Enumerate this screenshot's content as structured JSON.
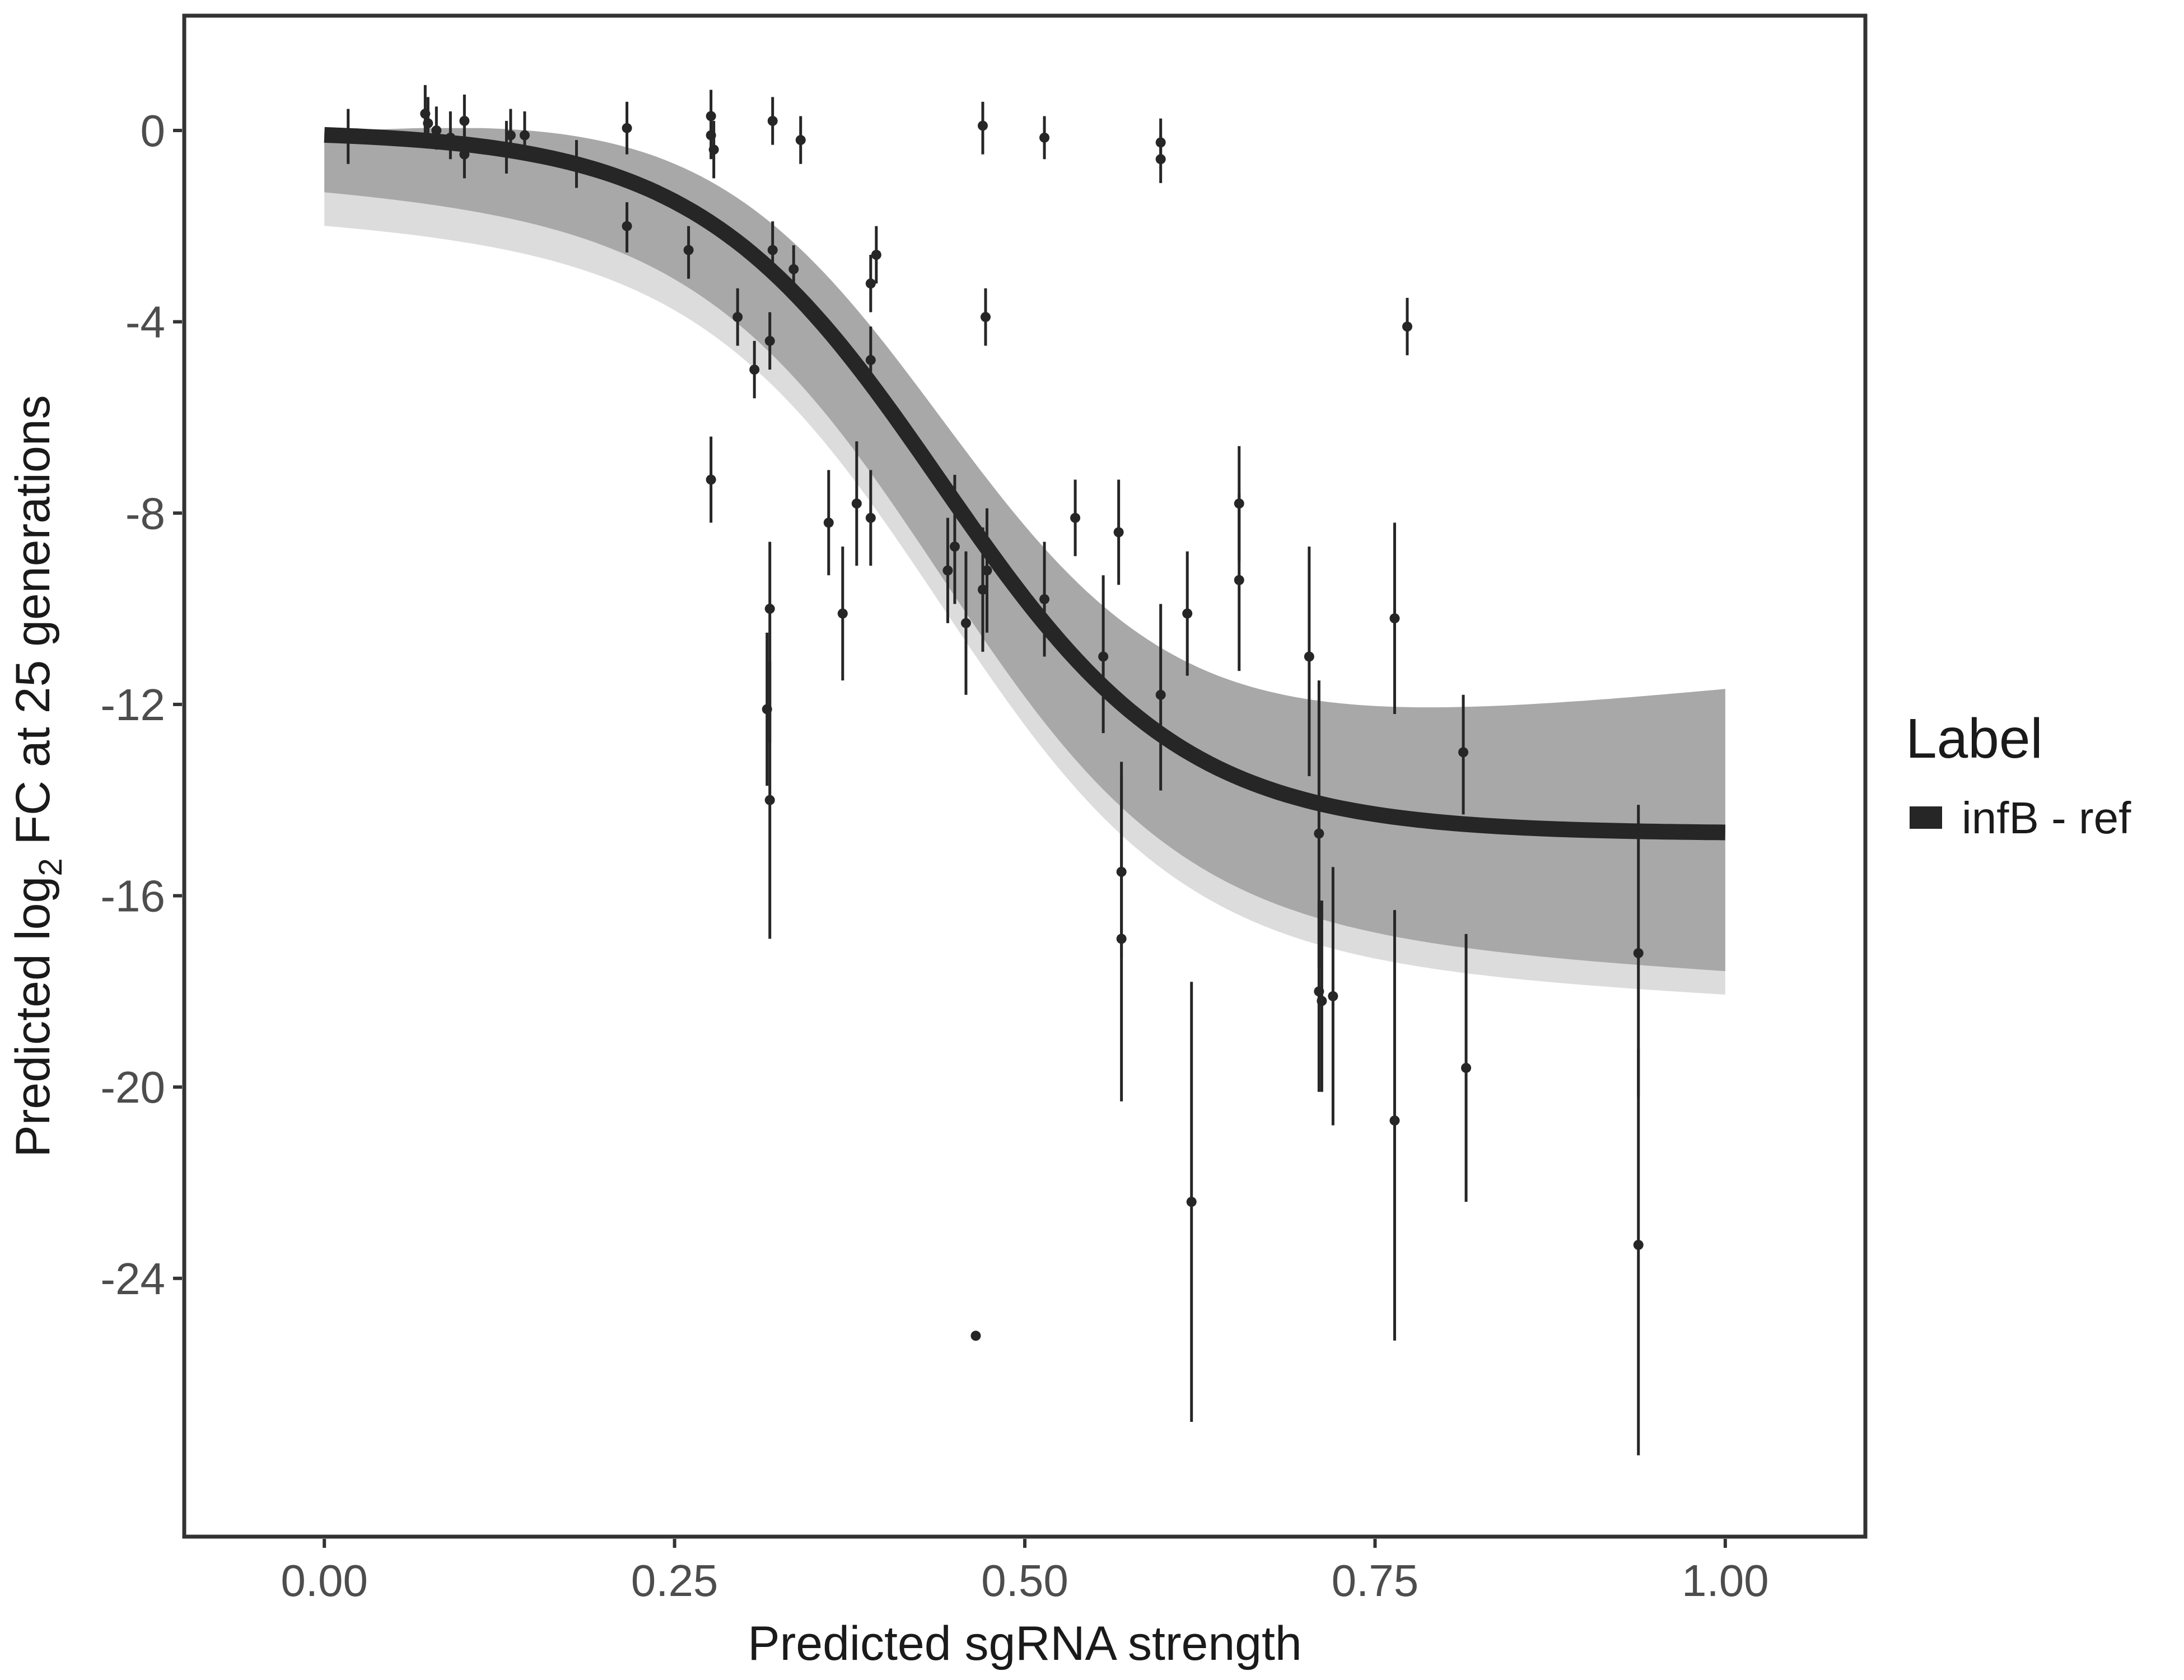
{
  "chart_data": {
    "type": "scatter",
    "xlabel": "Predicted sgRNA strength",
    "ylabel_parts": [
      "Predicted  log",
      "2",
      " FC at 25 generations"
    ],
    "xlim": [
      -0.1,
      1.1
    ],
    "ylim": [
      -29.4,
      2.4
    ],
    "x_ticks": [
      0,
      0.25,
      0.5,
      0.75,
      1
    ],
    "x_tick_labels": [
      "0.00",
      "0.25",
      "0.50",
      "0.75",
      "1.00"
    ],
    "y_ticks": [
      0,
      -4,
      -8,
      -12,
      -16,
      -20,
      -24
    ],
    "y_tick_labels": [
      "0",
      "-4",
      "-8",
      "-12",
      "-16",
      "-20",
      "-24"
    ],
    "grid": false,
    "legend": {
      "title": "Label",
      "placement": "right",
      "entries": [
        {
          "label": "infB - ref",
          "color": "#262626"
        }
      ]
    },
    "fit_curve": {
      "name": "infB - ref",
      "color": "#262626",
      "top": 0,
      "bottom": -14.7,
      "midpoint": 0.44,
      "slope": 11.5
    },
    "posterior_band": {
      "color": "#a8a8a8",
      "edge_color": "#dcdcdc",
      "lower_at_x0": -1.2,
      "upper_at_x0": 0.05,
      "lower_at_x1": -17.6,
      "upper_at_x1": -11.7
    },
    "points": [
      {
        "x": 0.017,
        "y": -0.1,
        "lo": -0.7,
        "hi": 0.45
      },
      {
        "x": 0.072,
        "y": 0.35,
        "lo": -0.25,
        "hi": 0.95
      },
      {
        "x": 0.074,
        "y": 0.15,
        "lo": -0.3,
        "hi": 0.7
      },
      {
        "x": 0.08,
        "y": 0.0,
        "lo": -0.4,
        "hi": 0.5
      },
      {
        "x": 0.09,
        "y": -0.15,
        "lo": -0.6,
        "hi": 0.4
      },
      {
        "x": 0.1,
        "y": 0.2,
        "lo": -0.4,
        "hi": 0.75
      },
      {
        "x": 0.1,
        "y": -0.5,
        "lo": -1.0,
        "hi": 0.0
      },
      {
        "x": 0.13,
        "y": -0.4,
        "lo": -0.9,
        "hi": 0.2
      },
      {
        "x": 0.133,
        "y": -0.1,
        "lo": -0.5,
        "hi": 0.45
      },
      {
        "x": 0.143,
        "y": -0.1,
        "lo": -0.6,
        "hi": 0.4
      },
      {
        "x": 0.18,
        "y": -0.7,
        "lo": -1.2,
        "hi": -0.2
      },
      {
        "x": 0.216,
        "y": 0.05,
        "lo": -0.5,
        "hi": 0.6
      },
      {
        "x": 0.216,
        "y": -2.0,
        "lo": -2.55,
        "hi": -1.5
      },
      {
        "x": 0.26,
        "y": -2.5,
        "lo": -3.1,
        "hi": -2.0
      },
      {
        "x": 0.276,
        "y": 0.3,
        "lo": -0.2,
        "hi": 0.85
      },
      {
        "x": 0.276,
        "y": -0.1,
        "lo": -0.6,
        "hi": 0.4
      },
      {
        "x": 0.278,
        "y": -0.4,
        "lo": -1.0,
        "hi": 0.2
      },
      {
        "x": 0.276,
        "y": -7.3,
        "lo": -8.2,
        "hi": -6.4
      },
      {
        "x": 0.295,
        "y": -3.9,
        "lo": -4.5,
        "hi": -3.3
      },
      {
        "x": 0.307,
        "y": -5.0,
        "lo": -5.6,
        "hi": -4.4
      },
      {
        "x": 0.32,
        "y": 0.2,
        "lo": -0.3,
        "hi": 0.7
      },
      {
        "x": 0.32,
        "y": -2.5,
        "lo": -3.1,
        "hi": -1.9
      },
      {
        "x": 0.318,
        "y": -4.4,
        "lo": -5.0,
        "hi": -3.8
      },
      {
        "x": 0.318,
        "y": -10.0,
        "lo": -12.8,
        "hi": -8.6
      },
      {
        "x": 0.316,
        "y": -12.1,
        "lo": -13.7,
        "hi": -10.5
      },
      {
        "x": 0.318,
        "y": -14.0,
        "lo": -16.9,
        "hi": -11.1
      },
      {
        "x": 0.335,
        "y": -2.9,
        "lo": -3.4,
        "hi": -2.4
      },
      {
        "x": 0.34,
        "y": -0.2,
        "lo": -0.7,
        "hi": 0.3
      },
      {
        "x": 0.36,
        "y": -8.2,
        "lo": -9.3,
        "hi": -7.1
      },
      {
        "x": 0.37,
        "y": -10.1,
        "lo": -11.5,
        "hi": -8.7
      },
      {
        "x": 0.38,
        "y": -7.8,
        "lo": -9.1,
        "hi": -6.5
      },
      {
        "x": 0.39,
        "y": -3.2,
        "lo": -3.8,
        "hi": -2.6
      },
      {
        "x": 0.39,
        "y": -4.8,
        "lo": -5.4,
        "hi": -4.1
      },
      {
        "x": 0.39,
        "y": -8.1,
        "lo": -9.1,
        "hi": -7.1
      },
      {
        "x": 0.394,
        "y": -2.6,
        "lo": -3.2,
        "hi": -2.0
      },
      {
        "x": 0.445,
        "y": -9.2,
        "lo": -10.3,
        "hi": -8.1
      },
      {
        "x": 0.45,
        "y": -8.7,
        "lo": -9.9,
        "hi": -7.2
      },
      {
        "x": 0.458,
        "y": -10.3,
        "lo": -11.8,
        "hi": -8.8
      },
      {
        "x": 0.465,
        "y": -25.2
      },
      {
        "x": 0.47,
        "y": 0.1,
        "lo": -0.5,
        "hi": 0.6
      },
      {
        "x": 0.472,
        "y": -3.9,
        "lo": -4.5,
        "hi": -3.3
      },
      {
        "x": 0.47,
        "y": -9.6,
        "lo": -10.9,
        "hi": -8.3
      },
      {
        "x": 0.473,
        "y": -9.2,
        "lo": -10.5,
        "hi": -7.9
      },
      {
        "x": 0.514,
        "y": -0.15,
        "lo": -0.6,
        "hi": 0.3
      },
      {
        "x": 0.514,
        "y": -9.8,
        "lo": -11.0,
        "hi": -8.6
      },
      {
        "x": 0.536,
        "y": -8.1,
        "lo": -8.9,
        "hi": -7.3
      },
      {
        "x": 0.556,
        "y": -11.0,
        "lo": -12.6,
        "hi": -9.3
      },
      {
        "x": 0.567,
        "y": -8.4,
        "lo": -9.5,
        "hi": -7.3
      },
      {
        "x": 0.569,
        "y": -15.5,
        "lo": -17.3,
        "hi": -13.2
      },
      {
        "x": 0.569,
        "y": -16.9,
        "lo": -20.3,
        "hi": -13.5
      },
      {
        "x": 0.597,
        "y": -0.25,
        "lo": -0.7,
        "hi": 0.25
      },
      {
        "x": 0.597,
        "y": -0.6,
        "lo": -1.1,
        "hi": -0.1
      },
      {
        "x": 0.597,
        "y": -11.8,
        "lo": -13.8,
        "hi": -9.9
      },
      {
        "x": 0.616,
        "y": -10.1,
        "lo": -11.4,
        "hi": -8.8
      },
      {
        "x": 0.619,
        "y": -22.4,
        "lo": -27.0,
        "hi": -17.8
      },
      {
        "x": 0.653,
        "y": -7.8,
        "lo": -9.0,
        "hi": -6.6
      },
      {
        "x": 0.653,
        "y": -9.4,
        "lo": -11.3,
        "hi": -7.6
      },
      {
        "x": 0.703,
        "y": -11.0,
        "lo": -13.5,
        "hi": -8.7
      },
      {
        "x": 0.71,
        "y": -14.7,
        "lo": -17.5,
        "hi": -11.5
      },
      {
        "x": 0.71,
        "y": -18.0,
        "lo": -20.1,
        "hi": -16.1
      },
      {
        "x": 0.712,
        "y": -18.2,
        "lo": -20.1,
        "hi": -16.1
      },
      {
        "x": 0.72,
        "y": -18.1,
        "lo": -20.8,
        "hi": -15.4
      },
      {
        "x": 0.764,
        "y": -10.2,
        "lo": -12.2,
        "hi": -8.2
      },
      {
        "x": 0.764,
        "y": -20.7,
        "lo": -25.3,
        "hi": -16.3
      },
      {
        "x": 0.773,
        "y": -4.1,
        "lo": -4.7,
        "hi": -3.5
      },
      {
        "x": 0.813,
        "y": -13.0,
        "lo": -14.3,
        "hi": -11.8
      },
      {
        "x": 0.815,
        "y": -19.6,
        "lo": -22.4,
        "hi": -16.8
      },
      {
        "x": 0.938,
        "y": -17.2,
        "lo": -20.2,
        "hi": -14.1
      },
      {
        "x": 0.938,
        "y": -23.3,
        "lo": -27.7,
        "hi": -19.2
      }
    ]
  }
}
